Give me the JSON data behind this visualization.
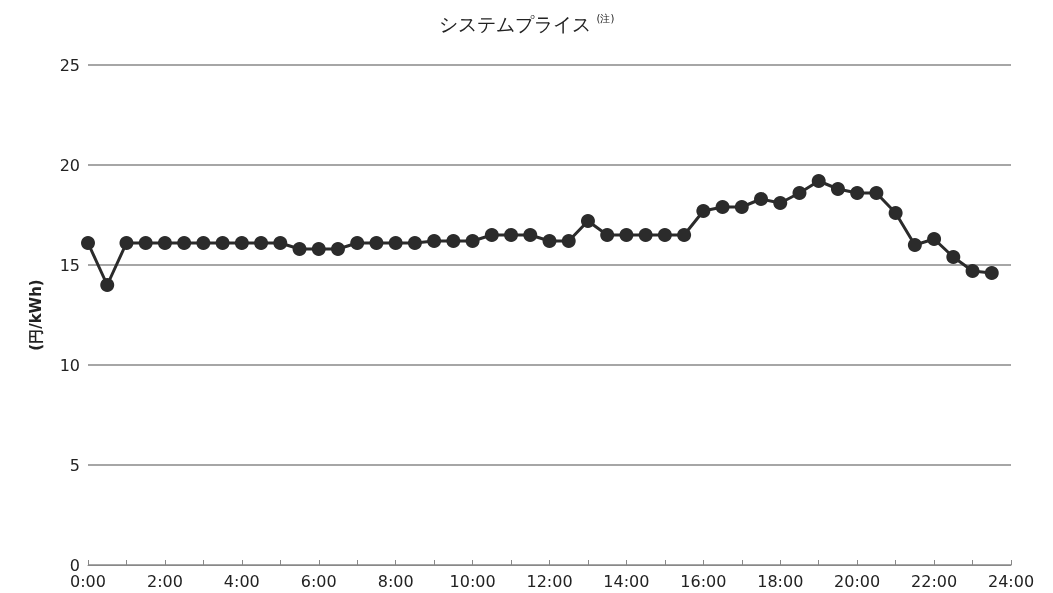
{
  "chart_data": {
    "type": "line",
    "title": "システムプライス$^{(注)}$",
    "ylabel": "(円/kWh)",
    "x": [
      0,
      0.5,
      1,
      1.5,
      2,
      2.5,
      3,
      3.5,
      4,
      4.5,
      5,
      5.5,
      6,
      6.5,
      7,
      7.5,
      8,
      8.5,
      9,
      9.5,
      10,
      10.5,
      11,
      11.5,
      12,
      12.5,
      13,
      13.5,
      14,
      14.5,
      15,
      15.5,
      16,
      16.5,
      17,
      17.5,
      18,
      18.5,
      19,
      19.5,
      20,
      20.5,
      21,
      21.5,
      22,
      22.5,
      23,
      23.5
    ],
    "series": [
      {
        "color": "#2b2b2b",
        "values": [
          16.1,
          14.0,
          16.1,
          16.1,
          16.1,
          16.1,
          16.1,
          16.1,
          16.1,
          16.1,
          16.1,
          15.8,
          15.8,
          15.8,
          16.1,
          16.1,
          16.1,
          16.1,
          16.2,
          16.2,
          16.2,
          16.5,
          16.5,
          16.5,
          16.2,
          16.2,
          17.2,
          16.5,
          16.5,
          16.5,
          16.5,
          16.5,
          17.7,
          17.9,
          17.9,
          18.3,
          18.1,
          18.6,
          19.2,
          18.8,
          18.6,
          18.6,
          17.6,
          16.0,
          16.3,
          15.4,
          14.7,
          14.6
        ]
      }
    ],
    "xlim": [
      0,
      24
    ],
    "xticks": [
      {
        "value": 0,
        "label": "0:00"
      },
      {
        "value": 1,
        "label": null
      },
      {
        "value": 2,
        "label": "2:00"
      },
      {
        "value": 3,
        "label": null
      },
      {
        "value": 4,
        "label": "4:00"
      },
      {
        "value": 5,
        "label": null
      },
      {
        "value": 6,
        "label": "6:00"
      },
      {
        "value": 7,
        "label": null
      },
      {
        "value": 8,
        "label": "8:00"
      },
      {
        "value": 9,
        "label": null
      },
      {
        "value": 10,
        "label": "10:00"
      },
      {
        "value": 11,
        "label": null
      },
      {
        "value": 12,
        "label": "12:00"
      },
      {
        "value": 13,
        "label": null
      },
      {
        "value": 14,
        "label": "14:00"
      },
      {
        "value": 15,
        "label": null
      },
      {
        "value": 16,
        "label": "16:00"
      },
      {
        "value": 17,
        "label": null
      },
      {
        "value": 18,
        "label": "18:00"
      },
      {
        "value": 19,
        "label": null
      },
      {
        "value": 20,
        "label": "20:00"
      },
      {
        "value": 21,
        "label": null
      },
      {
        "value": 22,
        "label": "22:00"
      },
      {
        "value": 23,
        "label": null
      },
      {
        "value": 24,
        "label": "24:00"
      }
    ],
    "ylim": [
      0,
      25
    ],
    "yticks": [
      0,
      5,
      10,
      15,
      20,
      25
    ],
    "grid": "y",
    "marker": "circle",
    "line_style": "solid"
  }
}
